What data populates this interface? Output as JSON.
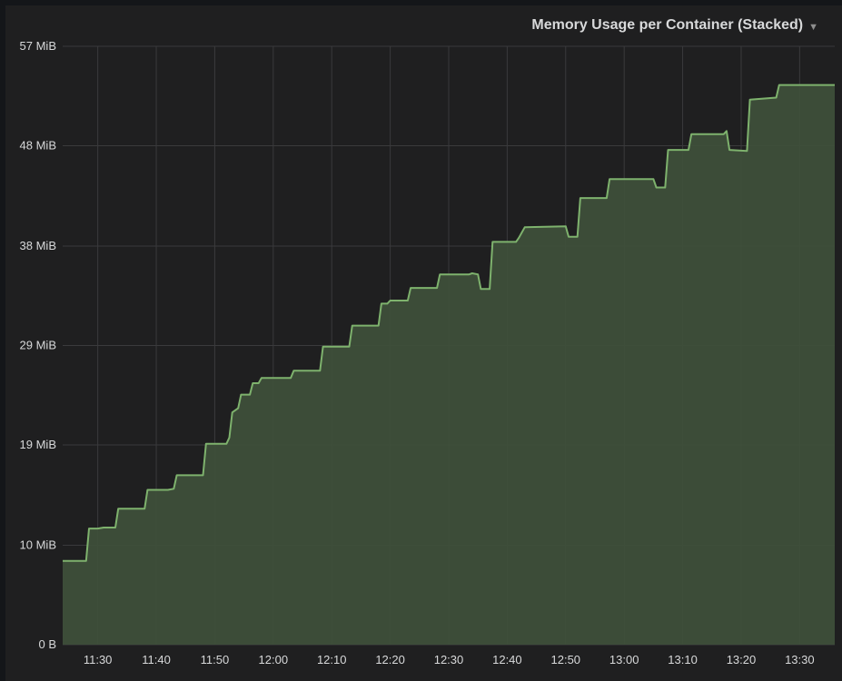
{
  "panel": {
    "title": "Memory Usage per Container (Stacked)",
    "menu_icon": "caret-down-icon"
  },
  "colors": {
    "background": "#1f1f20",
    "grid": "#3a3a3c",
    "line": "#7eb26d",
    "fill": "#3e4f3a",
    "text": "#d8d9da"
  },
  "chart_data": {
    "type": "area",
    "title": "Memory Usage per Container (Stacked)",
    "xlabel": "",
    "ylabel": "",
    "grid": true,
    "stacked": true,
    "y_unit": "MiB",
    "ylim": [
      0,
      57.2
    ],
    "y_ticks": [
      {
        "value": 0,
        "label": "0 B"
      },
      {
        "value": 9.5,
        "label": "10 MiB"
      },
      {
        "value": 19.1,
        "label": "19 MiB"
      },
      {
        "value": 28.6,
        "label": "29 MiB"
      },
      {
        "value": 38.1,
        "label": "38 MiB"
      },
      {
        "value": 47.7,
        "label": "48 MiB"
      },
      {
        "value": 57.2,
        "label": "57 MiB"
      }
    ],
    "xlim": [
      "11:24",
      "13:36"
    ],
    "x_ticks": [
      "11:30",
      "11:40",
      "11:50",
      "12:00",
      "12:10",
      "12:20",
      "12:30",
      "12:40",
      "12:50",
      "13:00",
      "13:10",
      "13:20",
      "13:30"
    ],
    "series": [
      {
        "points": [
          [
            "11:24",
            8.0
          ],
          [
            "11:28",
            8.0
          ],
          [
            "11:28:30",
            11.1
          ],
          [
            "11:30",
            11.1
          ],
          [
            "11:31",
            11.2
          ],
          [
            "11:33",
            11.2
          ],
          [
            "11:33:30",
            13.0
          ],
          [
            "11:38",
            13.0
          ],
          [
            "11:38:30",
            14.8
          ],
          [
            "11:42",
            14.8
          ],
          [
            "11:43",
            14.9
          ],
          [
            "11:43:30",
            16.2
          ],
          [
            "11:48",
            16.2
          ],
          [
            "11:48:30",
            19.2
          ],
          [
            "11:52",
            19.2
          ],
          [
            "11:52:30",
            19.8
          ],
          [
            "11:53",
            22.2
          ],
          [
            "11:54",
            22.6
          ],
          [
            "11:54:30",
            23.9
          ],
          [
            "11:56",
            23.9
          ],
          [
            "11:56:30",
            25.0
          ],
          [
            "11:57:30",
            25.0
          ],
          [
            "11:58",
            25.5
          ],
          [
            "12:03",
            25.5
          ],
          [
            "12:03:30",
            26.2
          ],
          [
            "12:08",
            26.2
          ],
          [
            "12:08:30",
            28.5
          ],
          [
            "12:13",
            28.5
          ],
          [
            "12:13:30",
            30.5
          ],
          [
            "12:18",
            30.5
          ],
          [
            "12:18:30",
            32.6
          ],
          [
            "12:19:30",
            32.6
          ],
          [
            "12:20",
            32.9
          ],
          [
            "12:23",
            32.9
          ],
          [
            "12:23:30",
            34.1
          ],
          [
            "12:28",
            34.1
          ],
          [
            "12:28:30",
            35.4
          ],
          [
            "12:33:30",
            35.4
          ],
          [
            "12:34",
            35.5
          ],
          [
            "12:35",
            35.4
          ],
          [
            "12:35:30",
            34.0
          ],
          [
            "12:37",
            34.0
          ],
          [
            "12:37:30",
            38.5
          ],
          [
            "12:41:30",
            38.5
          ],
          [
            "12:42",
            38.9
          ],
          [
            "12:43",
            39.9
          ],
          [
            "12:50",
            40.0
          ],
          [
            "12:50:30",
            39.0
          ],
          [
            "12:52",
            39.0
          ],
          [
            "12:52:30",
            42.7
          ],
          [
            "12:57",
            42.7
          ],
          [
            "12:57:30",
            44.5
          ],
          [
            "13:05",
            44.5
          ],
          [
            "13:05:30",
            43.7
          ],
          [
            "13:07",
            43.7
          ],
          [
            "13:07:30",
            47.3
          ],
          [
            "13:11",
            47.3
          ],
          [
            "13:11:30",
            48.8
          ],
          [
            "13:17",
            48.8
          ],
          [
            "13:17:30",
            49.1
          ],
          [
            "13:18",
            47.3
          ],
          [
            "13:21",
            47.2
          ],
          [
            "13:21:30",
            52.1
          ],
          [
            "13:26",
            52.3
          ],
          [
            "13:26:30",
            53.5
          ],
          [
            "13:36",
            53.5
          ]
        ]
      }
    ]
  }
}
